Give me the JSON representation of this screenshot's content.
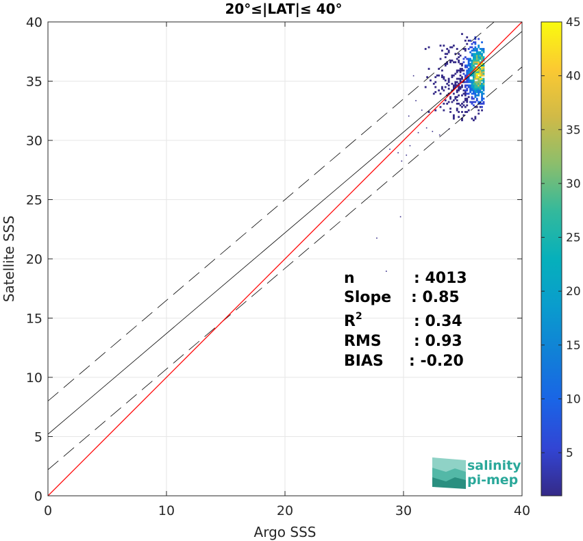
{
  "chart_data": {
    "type": "scatter",
    "title": "20°≤|LAT|≤ 40°",
    "xlabel": "Argo SSS",
    "ylabel": "Satellite SSS",
    "xlim": [
      0,
      40
    ],
    "ylim": [
      0,
      40
    ],
    "xticks": [
      "0",
      "10",
      "20",
      "30",
      "40"
    ],
    "yticks": [
      "0",
      "5",
      "10",
      "15",
      "20",
      "25",
      "30",
      "35",
      "40"
    ],
    "grid": true,
    "reference_lines": {
      "identity": {
        "slope": 1.0,
        "intercept": 0.0,
        "color": "#ff0000"
      },
      "fit": {
        "slope": 0.85,
        "intercept": 5.2,
        "color": "#000000"
      },
      "fit_offset_upper": {
        "slope": 0.85,
        "intercept": 8.0,
        "dashed": true
      },
      "fit_offset_lower": {
        "slope": 0.85,
        "intercept": 2.2,
        "dashed": true
      }
    },
    "colorbar": {
      "min": 1,
      "max": 45,
      "ticks": [
        "5",
        "10",
        "15",
        "20",
        "25",
        "30",
        "35",
        "40",
        "45"
      ],
      "colormap": "parula"
    },
    "density_cluster": {
      "x_range": [
        31.5,
        36.8
      ],
      "y_range": [
        31.5,
        39.0
      ],
      "peak": [
        36.3,
        35.8
      ]
    },
    "outliers": [
      [
        29.5,
        29.0
      ],
      [
        29.8,
        28.3
      ],
      [
        30.2,
        28.8
      ],
      [
        28.8,
        29.3
      ],
      [
        30.5,
        29.6
      ],
      [
        31.2,
        30.7
      ],
      [
        31.6,
        31.7
      ],
      [
        31.9,
        31.1
      ],
      [
        29.7,
        23.6
      ],
      [
        27.7,
        21.8
      ],
      [
        28.5,
        19.0
      ],
      [
        32.4,
        30.8
      ],
      [
        30.4,
        32.1
      ],
      [
        31.0,
        33.4
      ],
      [
        30.8,
        35.5
      ],
      [
        31.5,
        32.6
      ],
      [
        33.0,
        30.5
      ],
      [
        33.8,
        31.0
      ]
    ],
    "stats": [
      {
        "label": "n",
        "value": ": 4013"
      },
      {
        "label": "Slope",
        "value": ": 0.85"
      },
      {
        "label": "R",
        "sup": "2",
        "value": ": 0.34"
      },
      {
        "label": "RMS",
        "value": ": 0.93"
      },
      {
        "label": "BIAS",
        "value": ": -0.20"
      }
    ]
  },
  "logo": {
    "line1": "salinity",
    "line2": "pi-mep"
  }
}
